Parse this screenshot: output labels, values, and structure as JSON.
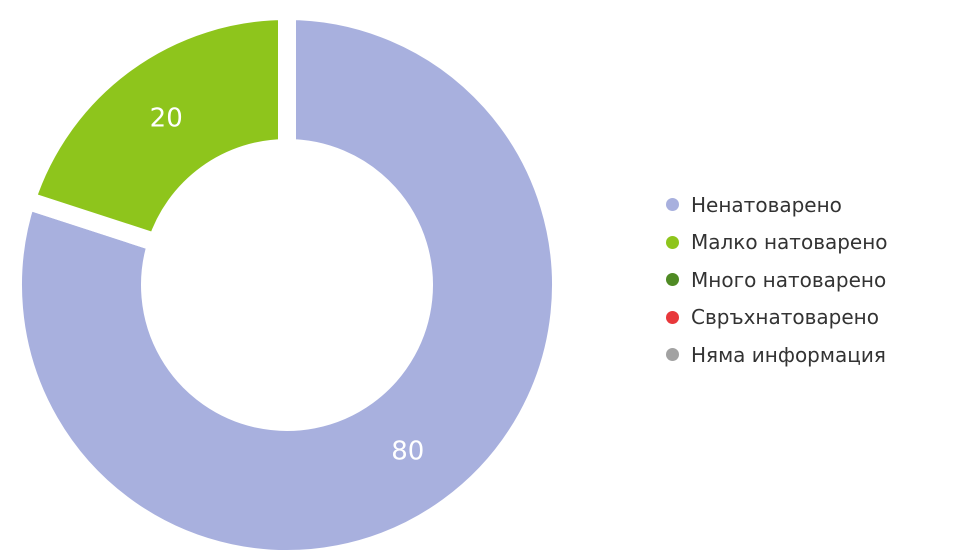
{
  "chart_data": {
    "type": "pie",
    "variant": "donut",
    "categories": [
      "Ненатоварено",
      "Малко натоварено",
      "Много натоварено",
      "Свръхнатоварено",
      "Няма информация"
    ],
    "values": [
      80,
      20,
      0,
      0,
      0
    ],
    "data_labels": [
      "80",
      "20",
      "",
      "",
      ""
    ],
    "colors": [
      "#a8b0de",
      "#8ec51c",
      "#4f8a24",
      "#e8383b",
      "#a2a2a2"
    ],
    "legend_position": "right"
  }
}
